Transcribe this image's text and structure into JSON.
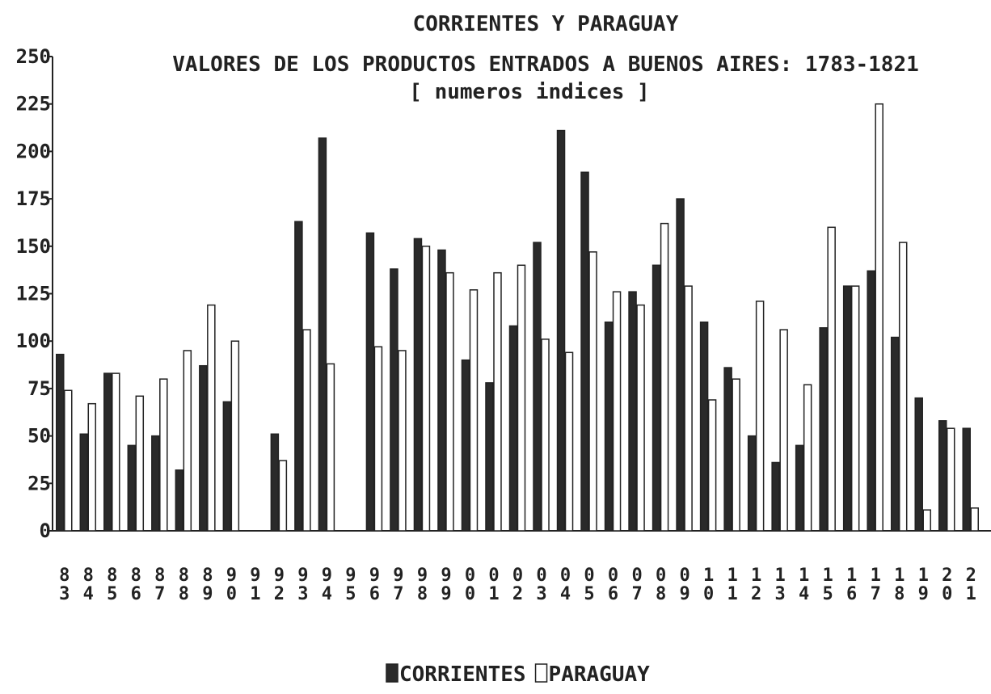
{
  "chart_data": {
    "type": "bar",
    "title": "CORRIENTES Y PARAGUAY",
    "subtitle": "VALORES DE LOS PRODUCTOS ENTRADOS A BUENOS AIRES: 1783-1821",
    "note": "[ numeros indices ]",
    "categories": [
      "83",
      "84",
      "85",
      "86",
      "87",
      "88",
      "89",
      "90",
      "91",
      "92",
      "93",
      "94",
      "95",
      "96",
      "97",
      "98",
      "99",
      "00",
      "01",
      "02",
      "03",
      "04",
      "05",
      "06",
      "07",
      "08",
      "09",
      "10",
      "11",
      "12",
      "13",
      "14",
      "15",
      "16",
      "17",
      "18",
      "19",
      "20",
      "21"
    ],
    "series": [
      {
        "name": "CORRIENTES",
        "color": "#2a2a2a",
        "values": [
          93,
          51,
          83,
          45,
          50,
          32,
          87,
          68,
          null,
          51,
          163,
          207,
          null,
          157,
          138,
          154,
          148,
          90,
          78,
          108,
          152,
          211,
          189,
          110,
          126,
          140,
          175,
          110,
          86,
          50,
          36,
          45,
          107,
          129,
          137,
          102,
          70,
          58,
          54
        ]
      },
      {
        "name": "PARAGUAY",
        "color": "#ffffff",
        "values": [
          74,
          67,
          83,
          71,
          80,
          95,
          119,
          100,
          null,
          37,
          106,
          88,
          null,
          97,
          95,
          150,
          136,
          127,
          136,
          140,
          101,
          94,
          147,
          126,
          119,
          162,
          129,
          69,
          80,
          121,
          106,
          77,
          160,
          129,
          225,
          152,
          11,
          54,
          12
        ]
      }
    ],
    "ylim": [
      0,
      250
    ],
    "yticks": [
      0,
      25,
      50,
      75,
      100,
      125,
      150,
      175,
      200,
      225,
      250
    ]
  }
}
